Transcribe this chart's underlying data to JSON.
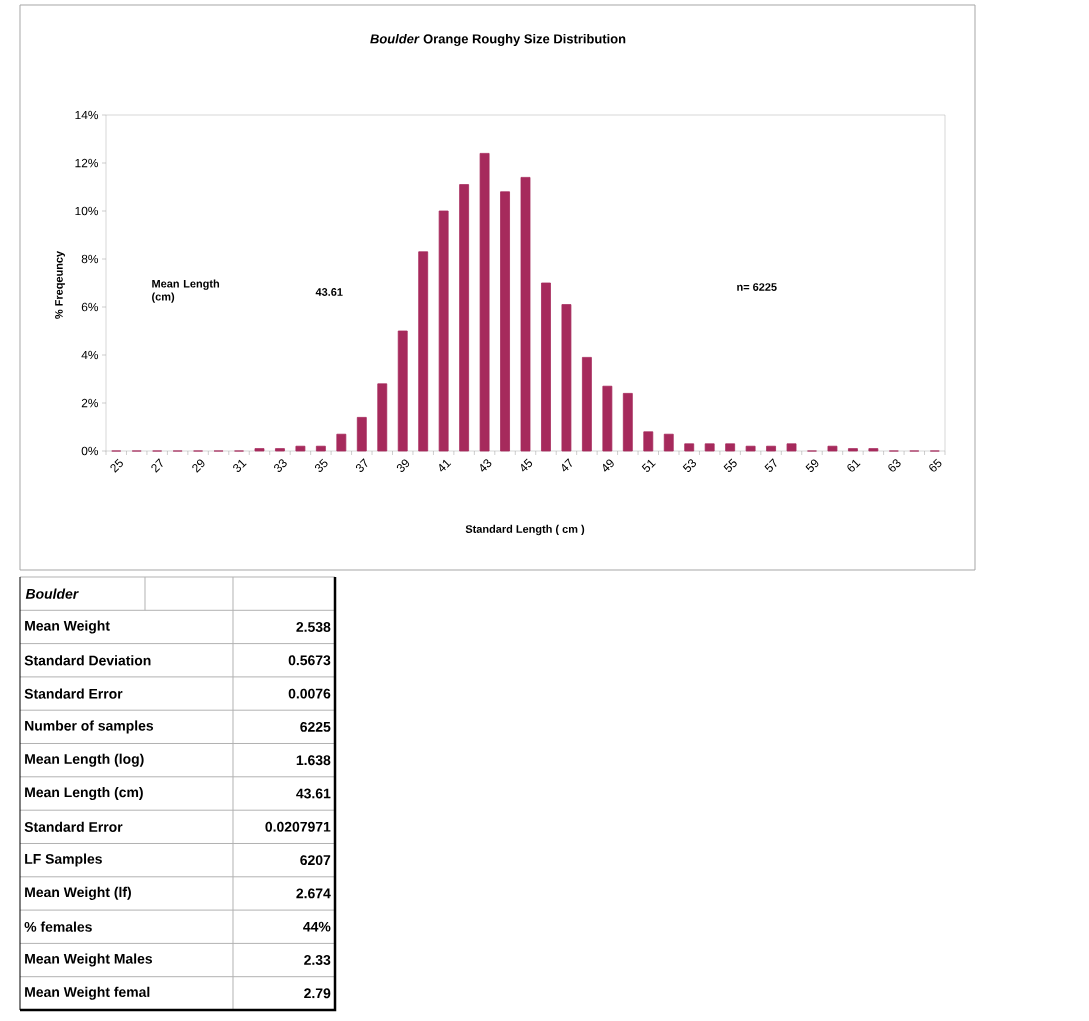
{
  "chart_data": {
    "type": "bar",
    "title": "*Boulder* Orange Roughy Size Distribution",
    "xlabel": "Standard Length ( cm )",
    "ylabel": "% Freqeuncy",
    "categories": [
      "25",
      null,
      "27",
      null,
      "29",
      null,
      "31",
      null,
      "33",
      null,
      "35",
      null,
      "37",
      null,
      "39",
      null,
      "41",
      null,
      "43",
      null,
      "45",
      null,
      "47",
      null,
      "49",
      null,
      "51",
      null,
      "53",
      null,
      "55",
      null,
      "57",
      null,
      "59",
      null,
      "61",
      null,
      "63",
      null,
      "65"
    ],
    "values": [
      0,
      0,
      0,
      0,
      0,
      0,
      0,
      0.1,
      0.1,
      0.2,
      0.2,
      0.7,
      1.4,
      2.8,
      5.0,
      8.3,
      10.0,
      11.1,
      12.4,
      10.8,
      11.4,
      7.0,
      6.1,
      3.9,
      2.7,
      2.4,
      0.8,
      0.7,
      0.3,
      0.3,
      0.3,
      0.2,
      0.2,
      0.3,
      0,
      0.2,
      0.1,
      0.1,
      0,
      0,
      0
    ],
    "color": "#a62a5c",
    "ylim": [
      0,
      14
    ],
    "yticks": [
      {
        "value": 0,
        "label": "0%"
      },
      {
        "value": 2,
        "label": "2%"
      },
      {
        "value": 4,
        "label": "4%"
      },
      {
        "value": 6,
        "label": "6%"
      },
      {
        "value": 8,
        "label": "8%"
      },
      {
        "value": 10,
        "label": "10%"
      },
      {
        "value": 12,
        "label": "12%"
      },
      {
        "value": 14,
        "label": "14%"
      }
    ],
    "annotations": [
      "Mean Length (cm)",
      "43.61",
      "n= 6225",
      "Boulder",
      "Mean Weight",
      "2.538",
      "Standard Deviation",
      "0.5673",
      "Standard Error",
      "0.0076",
      "Number of samples",
      "6225",
      "Mean Length (log)",
      "1.638",
      "Mean Length (cm)",
      "43.61",
      "Standard Error",
      "0.0207971",
      "LF Samples",
      "6207",
      "Mean Weight (lf)",
      "2.674",
      "% females",
      "44%",
      "Mean Weight Males",
      "2.33",
      "Mean Weight femal",
      "2.79"
    ]
  }
}
